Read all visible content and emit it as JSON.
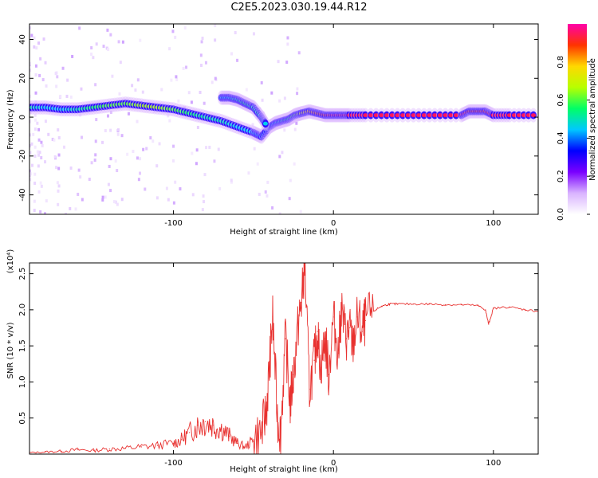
{
  "title": "C2E5.2023.030.19.44.R12",
  "chart_data": [
    {
      "type": "heatmap",
      "title": "",
      "xlabel": "Height of straight line (km)",
      "ylabel": "Frequency (Hz)",
      "xlim": [
        -190,
        128
      ],
      "ylim": [
        -50,
        48
      ],
      "xticks": [
        -100,
        0,
        100
      ],
      "yticks": [
        -40,
        -20,
        0,
        20,
        40
      ],
      "colorbar": {
        "label": "Normalized spectral amplitude",
        "range": [
          0,
          1
        ],
        "ticks": [
          "0.0",
          "0.2",
          "0.4",
          "0.6",
          "0.8"
        ],
        "colors": [
          "#ffffff",
          "#d9b3ff",
          "#7a00ff",
          "#0000ff",
          "#00c8ff",
          "#00ff66",
          "#b8ff00",
          "#ffd800",
          "#ff3300",
          "#ff00aa"
        ]
      },
      "ridge": {
        "x": [
          -190,
          -180,
          -170,
          -160,
          -150,
          -140,
          -130,
          -120,
          -110,
          -100,
          -90,
          -80,
          -70,
          -60,
          -50,
          -45,
          -40,
          -36,
          -32,
          -28,
          -24,
          -20,
          -15,
          -10,
          -5,
          0,
          5,
          10,
          20,
          40,
          60,
          80,
          85,
          90,
          95,
          100,
          110,
          128
        ],
        "y": [
          5,
          5,
          4,
          4,
          5,
          6,
          7,
          6,
          5,
          4,
          2,
          0,
          -2,
          -5,
          -8,
          -10,
          -5,
          -3,
          -2,
          -1,
          1,
          2,
          3,
          2,
          1,
          1,
          1,
          1,
          1,
          1,
          1,
          1,
          3,
          3,
          3,
          1,
          1,
          1
        ],
        "amplitude": [
          0.5,
          0.45,
          0.45,
          0.5,
          0.55,
          0.6,
          0.6,
          0.65,
          0.65,
          0.6,
          0.55,
          0.5,
          0.5,
          0.45,
          0.45,
          0.4,
          0.35,
          0.45,
          0.5,
          0.55,
          0.6,
          0.7,
          0.8,
          0.85,
          0.9,
          0.95,
          0.95,
          0.95,
          0.95,
          0.95,
          0.95,
          0.95,
          0.9,
          0.9,
          0.9,
          0.95,
          0.95,
          0.95
        ]
      },
      "branch": {
        "x": [
          -70,
          -65,
          -60,
          -55,
          -50,
          -45,
          -42
        ],
        "y": [
          10,
          10,
          9,
          7,
          5,
          0,
          -4
        ],
        "amplitude": [
          0.45,
          0.45,
          0.5,
          0.55,
          0.5,
          0.5,
          0.45
        ]
      }
    },
    {
      "type": "line",
      "title": "",
      "xlabel": "Height of straight line (km)",
      "ylabel": "SNR (10 * v/v)",
      "y_multiplier": "(x10⁴)",
      "xlim": [
        -190,
        128
      ],
      "ylim": [
        0,
        2.65
      ],
      "xticks": [
        -100,
        0,
        100
      ],
      "yticks": [
        "0.5",
        "1.0",
        "1.5",
        "2.0",
        "2.5"
      ],
      "series": [
        {
          "color": "#e8312f",
          "x": [
            -190,
            -180,
            -170,
            -160,
            -150,
            -140,
            -130,
            -120,
            -110,
            -100,
            -95,
            -90,
            -85,
            -80,
            -75,
            -70,
            -65,
            -60,
            -55,
            -50,
            -45,
            -42,
            -40,
            -38,
            -35,
            -33,
            -30,
            -27,
            -25,
            -22,
            -20,
            -18,
            -15,
            -12,
            -10,
            -8,
            -5,
            -3,
            0,
            3,
            5,
            8,
            10,
            12,
            15,
            18,
            20,
            25,
            30,
            35,
            40,
            50,
            60,
            70,
            80,
            90,
            95,
            97,
            100,
            110,
            120,
            128
          ],
          "y": [
            0.02,
            0.03,
            0.04,
            0.06,
            0.05,
            0.07,
            0.08,
            0.1,
            0.12,
            0.15,
            0.2,
            0.3,
            0.4,
            0.45,
            0.4,
            0.35,
            0.25,
            0.15,
            0.1,
            0.2,
            0.3,
            0.6,
            1.2,
            1.9,
            0.5,
            0.3,
            1.6,
            0.7,
            1.1,
            1.8,
            2.1,
            2.65,
            0.9,
            1.3,
            1.7,
            1.2,
            1.6,
            1.1,
            1.9,
            1.4,
            2.0,
            1.6,
            1.75,
            1.5,
            1.9,
            1.7,
            1.85,
            1.98,
            2.05,
            2.08,
            2.08,
            2.08,
            2.08,
            2.07,
            2.07,
            2.06,
            2.0,
            1.8,
            2.02,
            2.04,
            2.0,
            1.98
          ]
        }
      ]
    }
  ]
}
